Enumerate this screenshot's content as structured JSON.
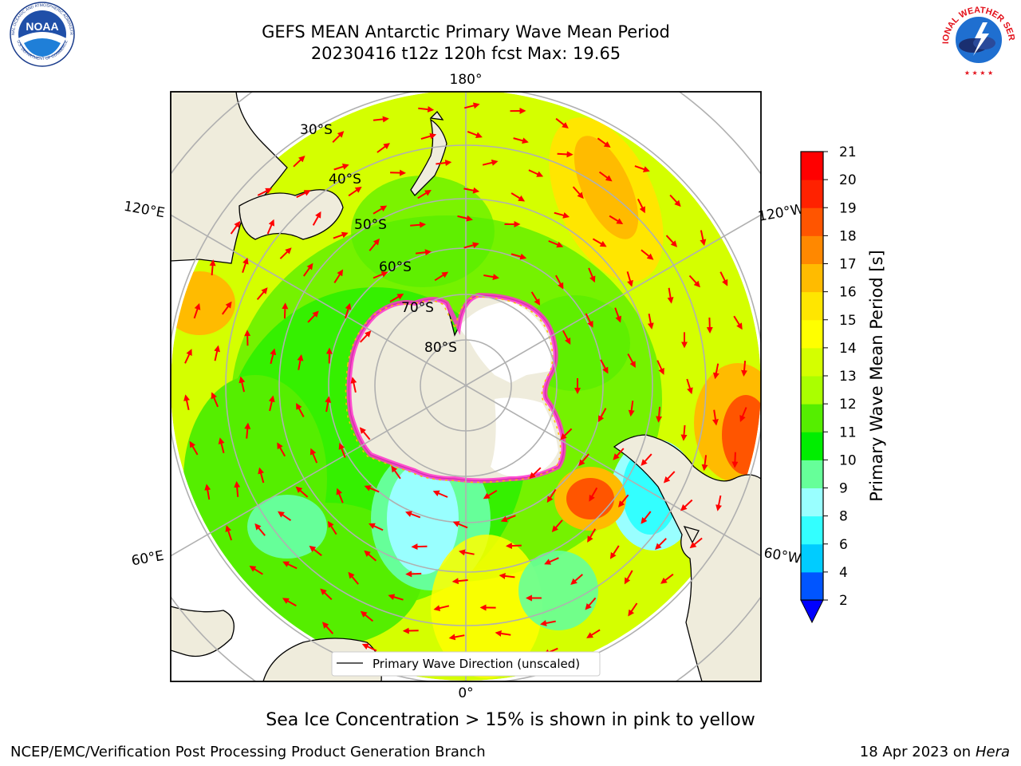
{
  "title": {
    "line1": "GEFS MEAN Antarctic Primary Wave Mean Period",
    "line2": "20230416 t12z 120h fcst   Max: 19.65"
  },
  "logos": {
    "noara": "NOAA",
    "noaa_ring_top": "NATIONAL OCEANIC AND ATMOSPHERIC ADMINISTRATION",
    "noaa_ring_bottom": "U.S. DEPARTMENT OF COMMERCE",
    "nws_ring": "NATIONAL WEATHER SERVICE"
  },
  "map": {
    "lon_labels": {
      "top": "180°",
      "bottom": "0°",
      "left_upper": "120°E",
      "left_lower": "60°E",
      "right_upper": "120°W",
      "right_lower": "60°W"
    },
    "lat_labels": [
      "30°S",
      "40°S",
      "50°S",
      "60°S",
      "70°S",
      "80°S"
    ],
    "legend": "Primary Wave Direction (unscaled)",
    "arrow_color": "#ff0000",
    "land_color": "#efecdc",
    "sea_ice_color": "#ff33cc"
  },
  "colorbar": {
    "label": "Primary Wave Mean Period [s]",
    "ticks": [
      "2",
      "4",
      "6",
      "8",
      "9",
      "10",
      "11",
      "12",
      "13",
      "14",
      "15",
      "16",
      "17",
      "18",
      "19",
      "20",
      "21"
    ],
    "colors": [
      "#0055ff",
      "#00ccff",
      "#33ffff",
      "#99ffff",
      "#66ff99",
      "#00ee00",
      "#55ee00",
      "#aaff00",
      "#d4ff00",
      "#ffff00",
      "#ffe600",
      "#ffbb00",
      "#ff8800",
      "#ff5500",
      "#ff2200",
      "#ff0000"
    ],
    "extend_color": "#0000ff"
  },
  "footer": {
    "note": "Sea Ice Concentration > 15% is shown in pink to yellow",
    "credit": "NCEP/EMC/Verification Post Processing Product Generation Branch",
    "date": "18 Apr 2023 on",
    "machine": "Hera"
  }
}
